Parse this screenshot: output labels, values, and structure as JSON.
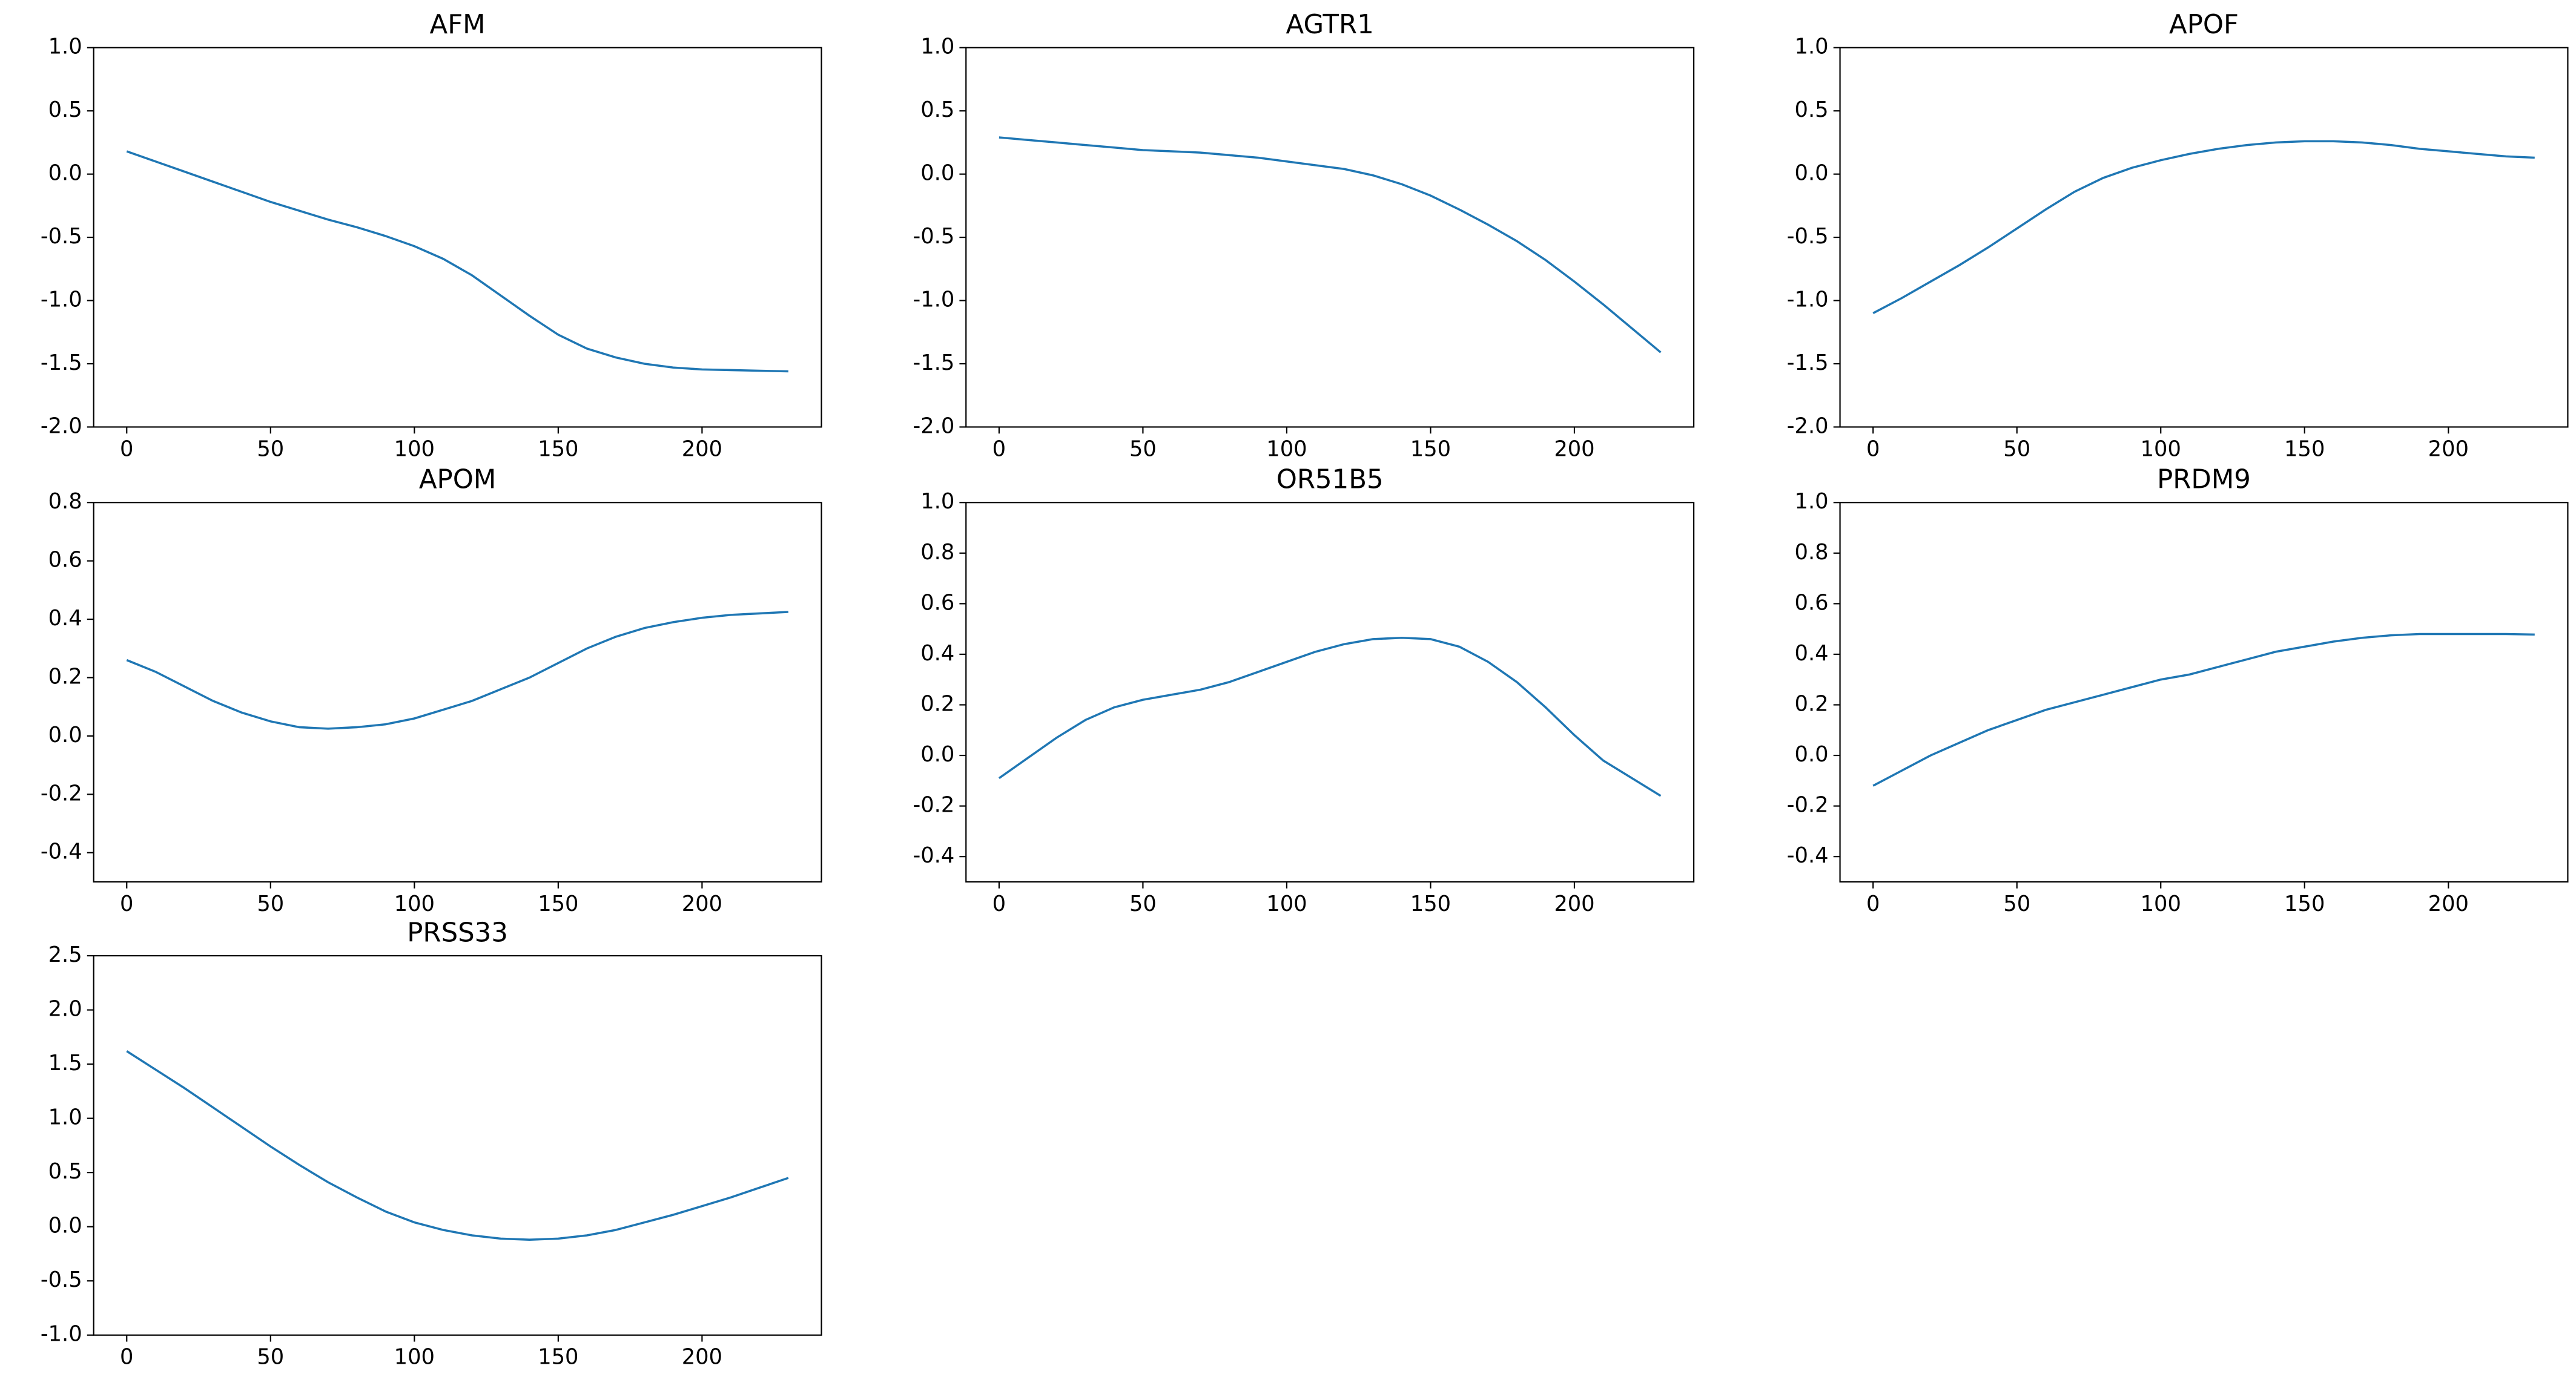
{
  "chart_data": [
    {
      "type": "line",
      "title": "AFM",
      "color": "#1f77b4",
      "x": [
        0,
        10,
        20,
        30,
        40,
        50,
        60,
        70,
        80,
        90,
        100,
        110,
        120,
        130,
        140,
        150,
        160,
        170,
        180,
        190,
        200,
        210,
        220,
        230
      ],
      "values": [
        0.18,
        0.1,
        0.02,
        -0.06,
        -0.14,
        -0.22,
        -0.29,
        -0.36,
        -0.42,
        -0.49,
        -0.57,
        -0.67,
        -0.8,
        -0.96,
        -1.12,
        -1.27,
        -1.38,
        -1.45,
        -1.5,
        -1.53,
        -1.545,
        -1.55,
        -1.555,
        -1.56
      ],
      "xlim": [
        -11.5,
        241.5
      ],
      "xticks": [
        0,
        50,
        100,
        150,
        200
      ],
      "ylim": [
        -2,
        1
      ],
      "yticks": [
        {
          "value": -2,
          "label": "-2.0"
        },
        {
          "value": -1.5,
          "label": "-1.5"
        },
        {
          "value": -1,
          "label": "-1.0"
        },
        {
          "value": -0.5,
          "label": "-0.5"
        },
        {
          "value": 0,
          "label": "0.0"
        },
        {
          "value": 0.5,
          "label": "0.5"
        },
        {
          "value": 1,
          "label": "1.0"
        }
      ]
    },
    {
      "type": "line",
      "title": "AGTR1",
      "color": "#1f77b4",
      "x": [
        0,
        10,
        20,
        30,
        40,
        50,
        60,
        70,
        80,
        90,
        100,
        110,
        120,
        130,
        140,
        150,
        160,
        170,
        180,
        190,
        200,
        210,
        220,
        230
      ],
      "values": [
        0.29,
        0.27,
        0.25,
        0.23,
        0.21,
        0.19,
        0.18,
        0.17,
        0.15,
        0.13,
        0.1,
        0.07,
        0.04,
        -0.01,
        -0.08,
        -0.17,
        -0.28,
        -0.4,
        -0.53,
        -0.68,
        -0.85,
        -1.03,
        -1.22,
        -1.41
      ],
      "xlim": [
        -11.5,
        241.5
      ],
      "xticks": [
        0,
        50,
        100,
        150,
        200
      ],
      "ylim": [
        -2,
        1
      ],
      "yticks": [
        {
          "value": -2,
          "label": "-2.0"
        },
        {
          "value": -1.5,
          "label": "-1.5"
        },
        {
          "value": -1,
          "label": "-1.0"
        },
        {
          "value": -0.5,
          "label": "-0.5"
        },
        {
          "value": 0,
          "label": "0.0"
        },
        {
          "value": 0.5,
          "label": "0.5"
        },
        {
          "value": 1,
          "label": "1.0"
        }
      ]
    },
    {
      "type": "line",
      "title": "APOF",
      "color": "#1f77b4",
      "x": [
        0,
        10,
        20,
        30,
        40,
        50,
        60,
        70,
        80,
        90,
        100,
        110,
        120,
        130,
        140,
        150,
        160,
        170,
        180,
        190,
        200,
        210,
        220,
        230
      ],
      "values": [
        -1.1,
        -0.98,
        -0.85,
        -0.72,
        -0.58,
        -0.43,
        -0.28,
        -0.14,
        -0.03,
        0.05,
        0.11,
        0.16,
        0.2,
        0.23,
        0.25,
        0.26,
        0.26,
        0.25,
        0.23,
        0.2,
        0.18,
        0.16,
        0.14,
        0.13
      ],
      "xlim": [
        -11.5,
        241.5
      ],
      "xticks": [
        0,
        50,
        100,
        150,
        200
      ],
      "ylim": [
        -2,
        1
      ],
      "yticks": [
        {
          "value": -2,
          "label": "-2.0"
        },
        {
          "value": -1.5,
          "label": "-1.5"
        },
        {
          "value": -1,
          "label": "-1.0"
        },
        {
          "value": -0.5,
          "label": "-0.5"
        },
        {
          "value": 0,
          "label": "0.0"
        },
        {
          "value": 0.5,
          "label": "0.5"
        },
        {
          "value": 1,
          "label": "1.0"
        }
      ]
    },
    {
      "type": "line",
      "title": "APOM",
      "color": "#1f77b4",
      "x": [
        0,
        10,
        20,
        30,
        40,
        50,
        60,
        70,
        80,
        90,
        100,
        110,
        120,
        130,
        140,
        150,
        160,
        170,
        180,
        190,
        200,
        210,
        220,
        230
      ],
      "values": [
        0.26,
        0.22,
        0.17,
        0.12,
        0.08,
        0.05,
        0.03,
        0.025,
        0.03,
        0.04,
        0.06,
        0.09,
        0.12,
        0.16,
        0.2,
        0.25,
        0.3,
        0.34,
        0.37,
        0.39,
        0.405,
        0.415,
        0.42,
        0.425
      ],
      "xlim": [
        -11.5,
        241.5
      ],
      "xticks": [
        0,
        50,
        100,
        150,
        200
      ],
      "ylim": [
        -0.5,
        0.8
      ],
      "yticks": [
        {
          "value": -0.4,
          "label": "-0.4"
        },
        {
          "value": -0.2,
          "label": "-0.2"
        },
        {
          "value": 0,
          "label": "0.0"
        },
        {
          "value": 0.2,
          "label": "0.2"
        },
        {
          "value": 0.4,
          "label": "0.4"
        },
        {
          "value": 0.6,
          "label": "0.6"
        },
        {
          "value": 0.8,
          "label": "0.8"
        }
      ]
    },
    {
      "type": "line",
      "title": "OR51B5",
      "color": "#1f77b4",
      "x": [
        0,
        10,
        20,
        30,
        40,
        50,
        60,
        70,
        80,
        90,
        100,
        110,
        120,
        130,
        140,
        150,
        160,
        170,
        180,
        190,
        200,
        210,
        220,
        230
      ],
      "values": [
        -0.09,
        -0.01,
        0.07,
        0.14,
        0.19,
        0.22,
        0.24,
        0.26,
        0.29,
        0.33,
        0.37,
        0.41,
        0.44,
        0.46,
        0.465,
        0.46,
        0.43,
        0.37,
        0.29,
        0.19,
        0.08,
        -0.02,
        -0.09,
        -0.16
      ],
      "xlim": [
        -11.5,
        241.5
      ],
      "xticks": [
        0,
        50,
        100,
        150,
        200
      ],
      "ylim": [
        -0.5,
        1
      ],
      "yticks": [
        {
          "value": -0.4,
          "label": "-0.4"
        },
        {
          "value": -0.2,
          "label": "-0.2"
        },
        {
          "value": 0,
          "label": "0.0"
        },
        {
          "value": 0.2,
          "label": "0.2"
        },
        {
          "value": 0.4,
          "label": "0.4"
        },
        {
          "value": 0.6,
          "label": "0.6"
        },
        {
          "value": 0.8,
          "label": "0.8"
        },
        {
          "value": 1,
          "label": "1.0"
        }
      ]
    },
    {
      "type": "line",
      "title": "PRDM9",
      "color": "#1f77b4",
      "x": [
        0,
        10,
        20,
        30,
        40,
        50,
        60,
        70,
        80,
        90,
        100,
        110,
        120,
        130,
        140,
        150,
        160,
        170,
        180,
        190,
        200,
        210,
        220,
        230
      ],
      "values": [
        -0.12,
        -0.06,
        0.0,
        0.05,
        0.1,
        0.14,
        0.18,
        0.21,
        0.24,
        0.27,
        0.3,
        0.32,
        0.35,
        0.38,
        0.41,
        0.43,
        0.45,
        0.465,
        0.475,
        0.48,
        0.48,
        0.48,
        0.48,
        0.478
      ],
      "xlim": [
        -11.5,
        241.5
      ],
      "xticks": [
        0,
        50,
        100,
        150,
        200
      ],
      "ylim": [
        -0.5,
        1
      ],
      "yticks": [
        {
          "value": -0.4,
          "label": "-0.4"
        },
        {
          "value": -0.2,
          "label": "-0.2"
        },
        {
          "value": 0,
          "label": "0.0"
        },
        {
          "value": 0.2,
          "label": "0.2"
        },
        {
          "value": 0.4,
          "label": "0.4"
        },
        {
          "value": 0.6,
          "label": "0.6"
        },
        {
          "value": 0.8,
          "label": "0.8"
        },
        {
          "value": 1,
          "label": "1.0"
        }
      ]
    },
    {
      "type": "line",
      "title": "PRSS33",
      "color": "#1f77b4",
      "x": [
        0,
        10,
        20,
        30,
        40,
        50,
        60,
        70,
        80,
        90,
        100,
        110,
        120,
        130,
        140,
        150,
        160,
        170,
        180,
        190,
        200,
        210,
        220,
        230
      ],
      "values": [
        1.62,
        1.45,
        1.28,
        1.1,
        0.92,
        0.74,
        0.57,
        0.41,
        0.27,
        0.14,
        0.04,
        -0.03,
        -0.08,
        -0.11,
        -0.12,
        -0.11,
        -0.08,
        -0.03,
        0.04,
        0.11,
        0.19,
        0.27,
        0.36,
        0.45
      ],
      "xlim": [
        -11.5,
        241.5
      ],
      "xticks": [
        0,
        50,
        100,
        150,
        200
      ],
      "ylim": [
        -1,
        2.5
      ],
      "yticks": [
        {
          "value": -1,
          "label": "-1.0"
        },
        {
          "value": -0.5,
          "label": "-0.5"
        },
        {
          "value": 0,
          "label": "0.0"
        },
        {
          "value": 0.5,
          "label": "0.5"
        },
        {
          "value": 1,
          "label": "1.0"
        },
        {
          "value": 1.5,
          "label": "1.5"
        },
        {
          "value": 2,
          "label": "2.0"
        },
        {
          "value": 2.5,
          "label": "2.5"
        }
      ]
    }
  ]
}
